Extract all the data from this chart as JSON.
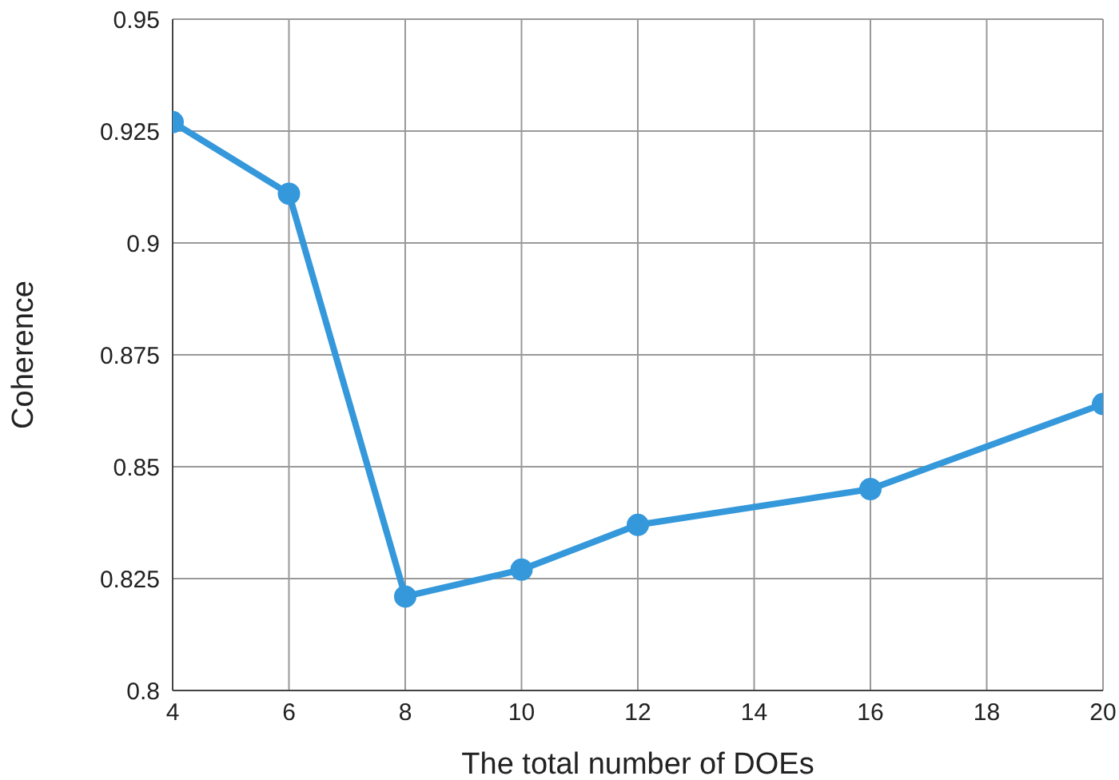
{
  "chart_data": {
    "type": "line",
    "xlabel": "The total number of DOEs",
    "ylabel": "Coherence",
    "x": [
      4,
      6,
      8,
      10,
      12,
      16,
      20
    ],
    "series": [
      {
        "color": "#3498db",
        "values": [
          0.927,
          0.911,
          0.821,
          0.827,
          0.837,
          0.845,
          0.864
        ]
      }
    ],
    "xlim": [
      4,
      20
    ],
    "xticks": [
      4,
      6,
      8,
      10,
      12,
      14,
      16,
      18,
      20
    ],
    "ylim": [
      0.8,
      0.95
    ],
    "yticks": [
      0.8,
      0.825,
      0.85,
      0.875,
      0.9,
      0.925,
      0.95
    ],
    "grid": true,
    "marker": "circle",
    "line_style": "solid"
  }
}
